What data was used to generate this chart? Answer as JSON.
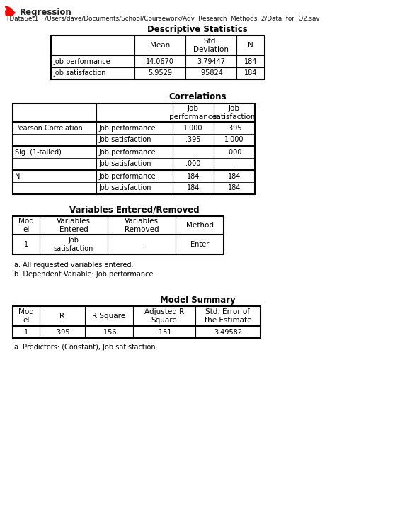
{
  "bg_color": "#ffffff",
  "header_arrow_color": "#ff0000",
  "header_title": "Regression",
  "dataset_line": "[DataSet1]  /Users/dave/Documents/School/Coursework/Adv  Research  Methods  2/Data  for  Q2.sav",
  "t1_title": "Descriptive Statistics",
  "t1_col_headers": [
    "",
    "Mean",
    "Std.\nDeviation",
    "N"
  ],
  "t1_rows": [
    [
      "Job performance",
      "14.0670",
      "3.79447",
      "184"
    ],
    [
      "Job satisfaction",
      "5.9529",
      ".95824",
      "184"
    ]
  ],
  "t2_title": "Correlations",
  "t2_col_headers": [
    "",
    "",
    "Job\nperformance",
    "Job\nsatisfaction"
  ],
  "t2_rows": [
    [
      "Pearson Correlation",
      "Job performance",
      "1.000",
      ".395"
    ],
    [
      "",
      "Job satisfaction",
      ".395",
      "1.000"
    ],
    [
      "Sig. (1-tailed)",
      "Job performance",
      ".",
      ".000"
    ],
    [
      "",
      "Job satisfaction",
      ".000",
      "."
    ],
    [
      "N",
      "Job performance",
      "184",
      "184"
    ],
    [
      "",
      "Job satisfaction",
      "184",
      "184"
    ]
  ],
  "t2_group_rows": [
    0,
    2,
    4
  ],
  "t3_title": "Variables Entered/Removed",
  "t3_col_headers": [
    "Mod\nel",
    "Variables\nEntered",
    "Variables\nRemoved",
    "Method"
  ],
  "t3_rows": [
    [
      "1",
      "Job\nsatisfaction",
      ".",
      "Enter"
    ]
  ],
  "t3_note1": "a. All requested variables entered.",
  "t3_note2": "b. Dependent Variable: Job performance",
  "t4_title": "Model Summary",
  "t4_col_headers": [
    "Mod\nel",
    "R",
    "R Square",
    "Adjusted R\nSquare",
    "Std. Error of\nthe Estimate"
  ],
  "t4_rows": [
    [
      "1",
      ".395",
      ".156",
      ".151",
      "3.49582"
    ]
  ],
  "t4_note": "a. Predictors: (Constant), Job satisfaction"
}
